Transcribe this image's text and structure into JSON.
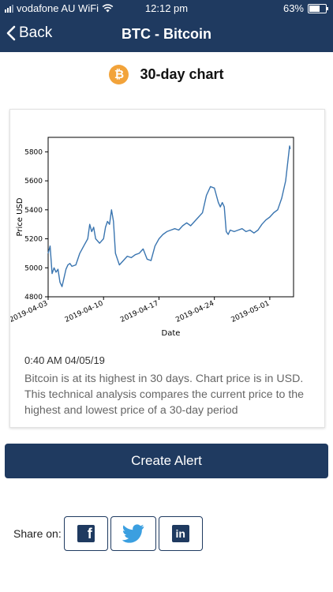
{
  "status": {
    "carrier": "vodafone AU WiFi",
    "time": "12:12 pm",
    "battery": "63%",
    "battery_level": 0.63
  },
  "nav": {
    "back_label": "Back",
    "title": "BTC - Bitcoin"
  },
  "heading": {
    "coin_symbol": "₿",
    "title": "30-day chart"
  },
  "chart_data": {
    "type": "line",
    "title": "",
    "xlabel": "Date",
    "ylabel": "Price USD",
    "x_ticks": [
      "2019-04-03",
      "2019-04-10",
      "2019-04-17",
      "2019-04-24",
      "2019-05-01"
    ],
    "y_ticks": [
      4800,
      5000,
      5200,
      5400,
      5600,
      5800
    ],
    "ylim": [
      4800,
      5900
    ],
    "xlim": [
      "2019-04-03",
      "2019-05-04"
    ],
    "grid": false,
    "series": [
      {
        "color": "#3a75b0",
        "points": [
          [
            "2019-04-03 00:00",
            5100
          ],
          [
            "2019-04-03 06:00",
            5150
          ],
          [
            "2019-04-03 12:00",
            4960
          ],
          [
            "2019-04-03 18:00",
            5000
          ],
          [
            "2019-04-04 00:00",
            4970
          ],
          [
            "2019-04-04 06:00",
            4990
          ],
          [
            "2019-04-04 12:00",
            4900
          ],
          [
            "2019-04-04 18:00",
            4870
          ],
          [
            "2019-04-05 00:00",
            4930
          ],
          [
            "2019-04-05 06:00",
            4990
          ],
          [
            "2019-04-05 12:00",
            5020
          ],
          [
            "2019-04-05 18:00",
            5030
          ],
          [
            "2019-04-06 00:00",
            5010
          ],
          [
            "2019-04-06 12:00",
            5020
          ],
          [
            "2019-04-07 00:00",
            5100
          ],
          [
            "2019-04-07 12:00",
            5150
          ],
          [
            "2019-04-08 00:00",
            5200
          ],
          [
            "2019-04-08 06:00",
            5300
          ],
          [
            "2019-04-08 12:00",
            5250
          ],
          [
            "2019-04-08 18:00",
            5280
          ],
          [
            "2019-04-09 00:00",
            5200
          ],
          [
            "2019-04-09 12:00",
            5170
          ],
          [
            "2019-04-10 00:00",
            5200
          ],
          [
            "2019-04-10 06:00",
            5280
          ],
          [
            "2019-04-10 12:00",
            5320
          ],
          [
            "2019-04-10 18:00",
            5300
          ],
          [
            "2019-04-11 00:00",
            5400
          ],
          [
            "2019-04-11 06:00",
            5320
          ],
          [
            "2019-04-11 12:00",
            5100
          ],
          [
            "2019-04-11 18:00",
            5060
          ],
          [
            "2019-04-12 00:00",
            5020
          ],
          [
            "2019-04-12 12:00",
            5050
          ],
          [
            "2019-04-13 00:00",
            5080
          ],
          [
            "2019-04-13 12:00",
            5070
          ],
          [
            "2019-04-14 00:00",
            5090
          ],
          [
            "2019-04-14 12:00",
            5100
          ],
          [
            "2019-04-15 00:00",
            5130
          ],
          [
            "2019-04-15 12:00",
            5060
          ],
          [
            "2019-04-16 00:00",
            5050
          ],
          [
            "2019-04-16 12:00",
            5150
          ],
          [
            "2019-04-17 00:00",
            5200
          ],
          [
            "2019-04-17 12:00",
            5230
          ],
          [
            "2019-04-18 00:00",
            5250
          ],
          [
            "2019-04-18 12:00",
            5260
          ],
          [
            "2019-04-19 00:00",
            5270
          ],
          [
            "2019-04-19 12:00",
            5260
          ],
          [
            "2019-04-20 00:00",
            5290
          ],
          [
            "2019-04-20 12:00",
            5310
          ],
          [
            "2019-04-21 00:00",
            5290
          ],
          [
            "2019-04-21 12:00",
            5320
          ],
          [
            "2019-04-22 00:00",
            5350
          ],
          [
            "2019-04-22 12:00",
            5380
          ],
          [
            "2019-04-23 00:00",
            5500
          ],
          [
            "2019-04-23 12:00",
            5560
          ],
          [
            "2019-04-24 00:00",
            5550
          ],
          [
            "2019-04-24 06:00",
            5500
          ],
          [
            "2019-04-24 12:00",
            5450
          ],
          [
            "2019-04-24 18:00",
            5420
          ],
          [
            "2019-04-25 00:00",
            5450
          ],
          [
            "2019-04-25 06:00",
            5420
          ],
          [
            "2019-04-25 12:00",
            5250
          ],
          [
            "2019-04-25 18:00",
            5230
          ],
          [
            "2019-04-26 00:00",
            5260
          ],
          [
            "2019-04-26 12:00",
            5250
          ],
          [
            "2019-04-27 00:00",
            5260
          ],
          [
            "2019-04-27 12:00",
            5270
          ],
          [
            "2019-04-28 00:00",
            5250
          ],
          [
            "2019-04-28 12:00",
            5260
          ],
          [
            "2019-04-29 00:00",
            5240
          ],
          [
            "2019-04-29 12:00",
            5260
          ],
          [
            "2019-04-30 00:00",
            5300
          ],
          [
            "2019-04-30 12:00",
            5330
          ],
          [
            "2019-05-01 00:00",
            5350
          ],
          [
            "2019-05-01 12:00",
            5380
          ],
          [
            "2019-05-02 00:00",
            5400
          ],
          [
            "2019-05-02 12:00",
            5480
          ],
          [
            "2019-05-03 00:00",
            5600
          ],
          [
            "2019-05-03 06:00",
            5720
          ],
          [
            "2019-05-03 12:00",
            5840
          ],
          [
            "2019-05-03 14:00",
            5820
          ]
        ]
      }
    ]
  },
  "info": {
    "timestamp": "0:40 AM 04/05/19",
    "description": "Bitcoin is at its highest in 30 days. Chart price is in USD. This technical analysis compares the current price to the highest and lowest price of a 30-day period"
  },
  "actions": {
    "create_alert": "Create Alert"
  },
  "share": {
    "label": "Share on:",
    "facebook_glyph": "f",
    "linkedin_glyph": "in",
    "colors": {
      "button_border": "#1f3a60",
      "twitter": "#3b9fe0"
    }
  },
  "colors": {
    "primary": "#1f3a60",
    "coin": "#f2a33a",
    "line": "#3a75b0"
  }
}
